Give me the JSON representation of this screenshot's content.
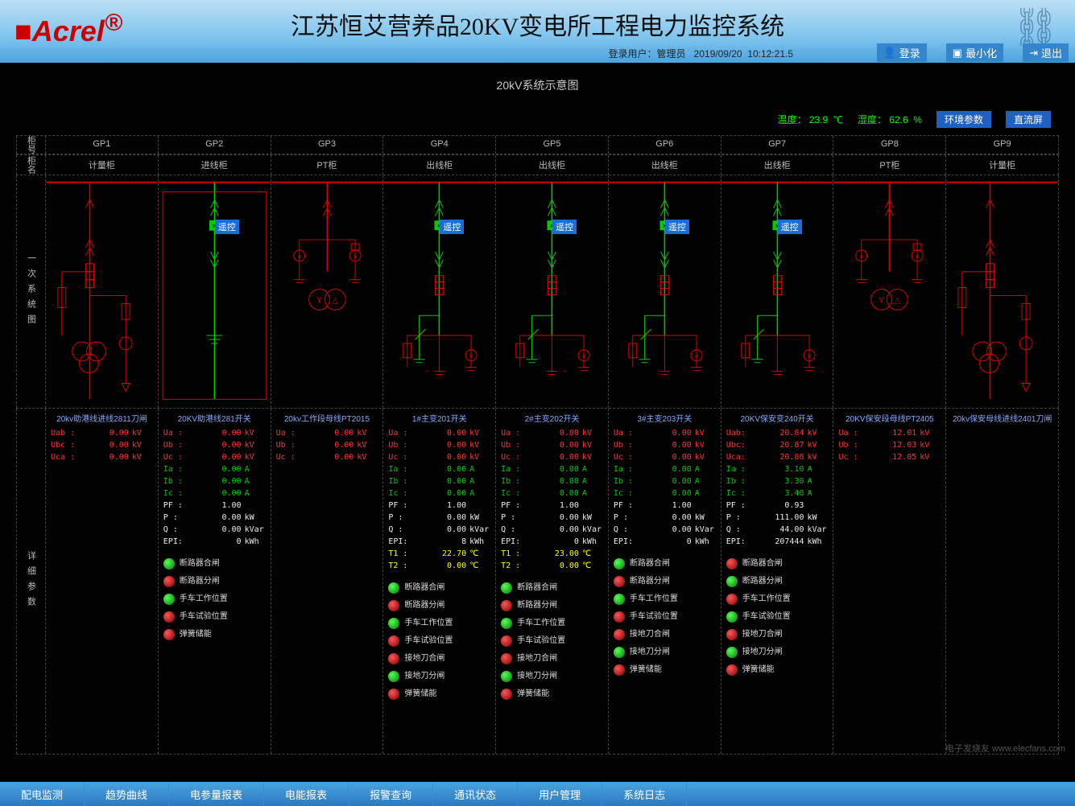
{
  "header": {
    "logo": "Acrel",
    "title": "江苏恒艾营养品20KV变电所工程电力监控系统",
    "user_prefix": "登录用户：",
    "user": "管理员",
    "date": "2019/09/20",
    "time": "10:12:21.5",
    "btn_login": "登录",
    "btn_min": "最小化",
    "btn_exit": "退出"
  },
  "sys_title": "20kV系统示意图",
  "env": {
    "temp_label": "温度：",
    "temp_val": "23.9",
    "temp_unit": "℃",
    "humid_label": "湿度：",
    "humid_val": "62.6",
    "humid_unit": "%",
    "btn1": "环境参数",
    "btn2": "直流屏"
  },
  "row_labels": {
    "r1": "柜号",
    "r2": "柜名",
    "side1": "一次系统图",
    "side2": "详细参数"
  },
  "cabinets": [
    {
      "id": "GP1",
      "name": "计量柜",
      "diag_color": "#d00",
      "remote": false
    },
    {
      "id": "GP2",
      "name": "进线柜",
      "diag_color": "#0c0",
      "remote": true
    },
    {
      "id": "GP3",
      "name": "PT柜",
      "diag_color": "#d00",
      "remote": false
    },
    {
      "id": "GP4",
      "name": "出线柜",
      "diag_color": "#0c0",
      "remote": true
    },
    {
      "id": "GP5",
      "name": "出线柜",
      "diag_color": "#0c0",
      "remote": true
    },
    {
      "id": "GP6",
      "name": "出线柜",
      "diag_color": "#0c0",
      "remote": true
    },
    {
      "id": "GP7",
      "name": "出线柜",
      "diag_color": "#0c0",
      "remote": true
    },
    {
      "id": "GP8",
      "name": "PT柜",
      "diag_color": "#d00",
      "remote": false
    },
    {
      "id": "GP9",
      "name": "计量柜",
      "diag_color": "#d00",
      "remote": false
    }
  ],
  "remote_label": "遥控",
  "details": [
    {
      "title": "20kv助港线进线2811刀闸",
      "params": [
        {
          "k": "Uab :",
          "v": "0.00",
          "u": "kV",
          "c": "c-red"
        },
        {
          "k": "Ubc :",
          "v": "0.00",
          "u": "kV",
          "c": "c-red"
        },
        {
          "k": "Uca :",
          "v": "0.00",
          "u": "kV",
          "c": "c-red"
        }
      ],
      "status": []
    },
    {
      "title": "20KV助港线281开关",
      "params": [
        {
          "k": "Ua :",
          "v": "0.00",
          "u": "kV",
          "c": "c-red"
        },
        {
          "k": "Ub :",
          "v": "0.00",
          "u": "kV",
          "c": "c-red"
        },
        {
          "k": "Uc :",
          "v": "0.00",
          "u": "kV",
          "c": "c-red"
        },
        {
          "k": "Ia :",
          "v": "0.00",
          "u": "A",
          "c": "c-grn"
        },
        {
          "k": "Ib :",
          "v": "0.00",
          "u": "A",
          "c": "c-grn"
        },
        {
          "k": "Ic :",
          "v": "0.00",
          "u": "A",
          "c": "c-grn"
        },
        {
          "k": "PF :",
          "v": "1.00",
          "u": "",
          "c": "c-wht"
        },
        {
          "k": "P  :",
          "v": "0.00",
          "u": "kW",
          "c": "c-wht"
        },
        {
          "k": "Q  :",
          "v": "0.00",
          "u": "kVar",
          "c": "c-wht"
        },
        {
          "k": "EPI:",
          "v": "0",
          "u": "kWh",
          "c": "c-wht"
        }
      ],
      "status": [
        {
          "label": "断路器合闸",
          "on": true
        },
        {
          "label": "断路器分闸",
          "on": false
        },
        {
          "label": "手车工作位置",
          "on": true
        },
        {
          "label": "手车试验位置",
          "on": false
        },
        {
          "label": "弹簧储能",
          "on": false
        }
      ]
    },
    {
      "title": "20kv工作段母线PT2015",
      "params": [
        {
          "k": "Ua :",
          "v": "0.00",
          "u": "kV",
          "c": "c-red"
        },
        {
          "k": "Ub :",
          "v": "0.00",
          "u": "kV",
          "c": "c-red"
        },
        {
          "k": "Uc :",
          "v": "0.00",
          "u": "kV",
          "c": "c-red"
        }
      ],
      "status": []
    },
    {
      "title": "1#主变201开关",
      "params": [
        {
          "k": "Ua :",
          "v": "0.00",
          "u": "kV",
          "c": "c-red"
        },
        {
          "k": "Ub :",
          "v": "0.00",
          "u": "kV",
          "c": "c-red"
        },
        {
          "k": "Uc :",
          "v": "0.00",
          "u": "kV",
          "c": "c-red"
        },
        {
          "k": "Ia :",
          "v": "0.00",
          "u": "A",
          "c": "c-grn"
        },
        {
          "k": "Ib :",
          "v": "0.00",
          "u": "A",
          "c": "c-grn"
        },
        {
          "k": "Ic :",
          "v": "0.00",
          "u": "A",
          "c": "c-grn"
        },
        {
          "k": "PF :",
          "v": "1.00",
          "u": "",
          "c": "c-wht"
        },
        {
          "k": "P  :",
          "v": "0.00",
          "u": "kW",
          "c": "c-wht"
        },
        {
          "k": "Q  :",
          "v": "0.00",
          "u": "kVar",
          "c": "c-wht"
        },
        {
          "k": "EPI:",
          "v": "8",
          "u": "kWh",
          "c": "c-wht"
        },
        {
          "k": "T1 :",
          "v": "22.70",
          "u": "℃",
          "c": "c-yel"
        },
        {
          "k": "T2 :",
          "v": "0.00",
          "u": "℃",
          "c": "c-yel"
        }
      ],
      "status": [
        {
          "label": "断路器合闸",
          "on": true
        },
        {
          "label": "断路器分闸",
          "on": false
        },
        {
          "label": "手车工作位置",
          "on": true
        },
        {
          "label": "手车试验位置",
          "on": false
        },
        {
          "label": "接地刀合闸",
          "on": false
        },
        {
          "label": "接地刀分闸",
          "on": true
        },
        {
          "label": "弹簧储能",
          "on": false
        }
      ]
    },
    {
      "title": "2#主变202开关",
      "params": [
        {
          "k": "Ua :",
          "v": "0.00",
          "u": "kV",
          "c": "c-red"
        },
        {
          "k": "Ub :",
          "v": "0.00",
          "u": "kV",
          "c": "c-red"
        },
        {
          "k": "Uc :",
          "v": "0.00",
          "u": "kV",
          "c": "c-red"
        },
        {
          "k": "Ia :",
          "v": "0.00",
          "u": "A",
          "c": "c-grn"
        },
        {
          "k": "Ib :",
          "v": "0.00",
          "u": "A",
          "c": "c-grn"
        },
        {
          "k": "Ic :",
          "v": "0.00",
          "u": "A",
          "c": "c-grn"
        },
        {
          "k": "PF :",
          "v": "1.00",
          "u": "",
          "c": "c-wht"
        },
        {
          "k": "P  :",
          "v": "0.00",
          "u": "kW",
          "c": "c-wht"
        },
        {
          "k": "Q  :",
          "v": "0.00",
          "u": "kVar",
          "c": "c-wht"
        },
        {
          "k": "EPI:",
          "v": "0",
          "u": "kWh",
          "c": "c-wht"
        },
        {
          "k": "T1 :",
          "v": "23.00",
          "u": "℃",
          "c": "c-yel"
        },
        {
          "k": "T2 :",
          "v": "0.00",
          "u": "℃",
          "c": "c-yel"
        }
      ],
      "status": [
        {
          "label": "断路器合闸",
          "on": true
        },
        {
          "label": "断路器分闸",
          "on": false
        },
        {
          "label": "手车工作位置",
          "on": true
        },
        {
          "label": "手车试验位置",
          "on": false
        },
        {
          "label": "接地刀合闸",
          "on": false
        },
        {
          "label": "接地刀分闸",
          "on": true
        },
        {
          "label": "弹簧储能",
          "on": false
        }
      ]
    },
    {
      "title": "3#主变203开关",
      "params": [
        {
          "k": "Ua :",
          "v": "0.00",
          "u": "kV",
          "c": "c-red"
        },
        {
          "k": "Ub :",
          "v": "0.00",
          "u": "kV",
          "c": "c-red"
        },
        {
          "k": "Uc :",
          "v": "0.00",
          "u": "kV",
          "c": "c-red"
        },
        {
          "k": "Ia :",
          "v": "0.00",
          "u": "A",
          "c": "c-grn"
        },
        {
          "k": "Ib :",
          "v": "0.00",
          "u": "A",
          "c": "c-grn"
        },
        {
          "k": "Ic :",
          "v": "0.00",
          "u": "A",
          "c": "c-grn"
        },
        {
          "k": "PF :",
          "v": "1.00",
          "u": "",
          "c": "c-wht"
        },
        {
          "k": "P  :",
          "v": "0.00",
          "u": "kW",
          "c": "c-wht"
        },
        {
          "k": "Q  :",
          "v": "0.00",
          "u": "kVar",
          "c": "c-wht"
        },
        {
          "k": "EPI:",
          "v": "0",
          "u": "kWh",
          "c": "c-wht"
        }
      ],
      "status": [
        {
          "label": "断路器合闸",
          "on": true
        },
        {
          "label": "断路器分闸",
          "on": false
        },
        {
          "label": "手车工作位置",
          "on": true
        },
        {
          "label": "手车试验位置",
          "on": false
        },
        {
          "label": "接地刀合闸",
          "on": false
        },
        {
          "label": "接地刀分闸",
          "on": true
        },
        {
          "label": "弹簧储能",
          "on": false
        }
      ]
    },
    {
      "title": "20KV保安变240开关",
      "params": [
        {
          "k": "Uab:",
          "v": "20.84",
          "u": "kV",
          "c": "c-red"
        },
        {
          "k": "Ubc:",
          "v": "20.87",
          "u": "kV",
          "c": "c-red"
        },
        {
          "k": "Uca:",
          "v": "20.86",
          "u": "kV",
          "c": "c-red"
        },
        {
          "k": "Ia :",
          "v": "3.10",
          "u": "A",
          "c": "c-grn"
        },
        {
          "k": "Ib :",
          "v": "3.30",
          "u": "A",
          "c": "c-grn"
        },
        {
          "k": "Ic :",
          "v": "3.40",
          "u": "A",
          "c": "c-grn"
        },
        {
          "k": "PF :",
          "v": "0.93",
          "u": "",
          "c": "c-wht"
        },
        {
          "k": "P  :",
          "v": "111.00",
          "u": "kW",
          "c": "c-wht"
        },
        {
          "k": "Q  :",
          "v": "44.00",
          "u": "kVar",
          "c": "c-wht"
        },
        {
          "k": "EPI:",
          "v": "207444",
          "u": "kWh",
          "c": "c-wht"
        }
      ],
      "status": [
        {
          "label": "断路器合闸",
          "on": false
        },
        {
          "label": "断路器分闸",
          "on": true
        },
        {
          "label": "手车工作位置",
          "on": false
        },
        {
          "label": "手车试验位置",
          "on": true
        },
        {
          "label": "接地刀合闸",
          "on": false
        },
        {
          "label": "接地刀分闸",
          "on": true
        },
        {
          "label": "弹簧储能",
          "on": false
        }
      ]
    },
    {
      "title": "20KV保安段母线PT2405",
      "params": [
        {
          "k": "Ua :",
          "v": "12.01",
          "u": "kV",
          "c": "c-red"
        },
        {
          "k": "Ub :",
          "v": "12.03",
          "u": "kV",
          "c": "c-red"
        },
        {
          "k": "Uc :",
          "v": "12.05",
          "u": "kV",
          "c": "c-red"
        }
      ],
      "status": []
    },
    {
      "title": "20kv保安母线进线2401刀闸",
      "params": [],
      "status": []
    }
  ],
  "footer": [
    "配电监测",
    "趋势曲线",
    "电参量报表",
    "电能报表",
    "报警查询",
    "通讯状态",
    "用户管理",
    "系统日志"
  ],
  "watermark": "电子发烧友 www.elecfans.com",
  "colors": {
    "busbar": "#d00",
    "green": "#0c0"
  }
}
